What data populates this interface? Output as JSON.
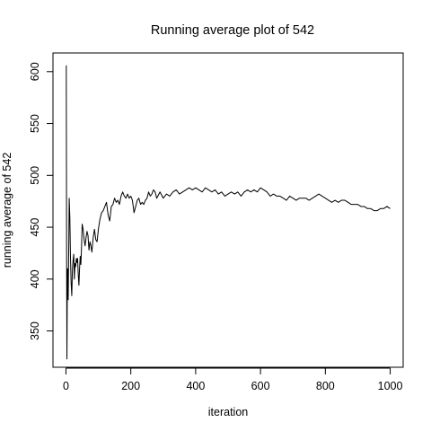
{
  "chart_data": {
    "type": "line",
    "title": "Running average plot of 542",
    "xlabel": "iteration",
    "ylabel": "running average of 542",
    "xlim": [
      -40,
      1040
    ],
    "ylim": [
      315,
      618
    ],
    "x_ticks": [
      0,
      200,
      400,
      600,
      800,
      1000
    ],
    "y_ticks": [
      350,
      400,
      450,
      500,
      550,
      600
    ],
    "grid": false,
    "legend": "none",
    "line_color": "#000000",
    "series": [
      {
        "x": [
          1,
          2,
          3,
          4,
          5,
          6,
          7,
          8,
          9,
          10,
          12,
          14,
          16,
          18,
          20,
          22,
          24,
          26,
          28,
          30,
          32,
          34,
          36,
          38,
          40,
          42,
          44,
          46,
          48,
          50,
          53,
          56,
          59,
          62,
          65,
          68,
          71,
          74,
          77,
          80,
          84,
          88,
          92,
          96,
          100,
          105,
          110,
          115,
          120,
          125,
          130,
          135,
          140,
          145,
          150,
          155,
          160,
          165,
          170,
          175,
          180,
          185,
          190,
          195,
          200,
          205,
          210,
          215,
          220,
          225,
          230,
          235,
          240,
          245,
          250,
          255,
          260,
          265,
          270,
          275,
          280,
          290,
          300,
          310,
          320,
          330,
          340,
          350,
          360,
          370,
          380,
          390,
          400,
          410,
          420,
          430,
          440,
          450,
          460,
          470,
          480,
          490,
          500,
          510,
          520,
          530,
          540,
          550,
          560,
          570,
          580,
          590,
          600,
          610,
          620,
          630,
          640,
          650,
          660,
          670,
          680,
          690,
          700,
          710,
          720,
          730,
          740,
          750,
          760,
          770,
          780,
          790,
          800,
          810,
          820,
          830,
          840,
          850,
          860,
          870,
          880,
          890,
          900,
          910,
          920,
          930,
          940,
          950,
          960,
          970,
          980,
          990,
          1000
        ],
        "y": [
          606,
          430,
          323,
          385,
          410,
          398,
          380,
          412,
          440,
          478,
          460,
          420,
          396,
          384,
          410,
          418,
          424,
          400,
          415,
          412,
          420,
          416,
          420,
          404,
          394,
          410,
          422,
          414,
          430,
          453,
          448,
          438,
          432,
          440,
          446,
          442,
          428,
          436,
          432,
          426,
          440,
          448,
          438,
          436,
          448,
          458,
          464,
          466,
          470,
          474,
          462,
          456,
          470,
          472,
          478,
          474,
          476,
          472,
          480,
          484,
          480,
          478,
          482,
          478,
          480,
          476,
          464,
          470,
          476,
          478,
          472,
          474,
          472,
          476,
          478,
          484,
          480,
          482,
          486,
          484,
          478,
          484,
          478,
          482,
          480,
          484,
          486,
          482,
          484,
          486,
          488,
          486,
          488,
          486,
          484,
          488,
          486,
          484,
          486,
          482,
          484,
          480,
          482,
          484,
          482,
          484,
          480,
          484,
          486,
          484,
          486,
          484,
          488,
          486,
          484,
          480,
          482,
          480,
          480,
          478,
          476,
          480,
          478,
          476,
          478,
          478,
          478,
          476,
          478,
          480,
          482,
          480,
          478,
          476,
          474,
          476,
          474,
          476,
          476,
          474,
          472,
          472,
          472,
          470,
          470,
          468,
          468,
          466,
          466,
          468,
          468,
          470,
          468
        ]
      }
    ]
  }
}
